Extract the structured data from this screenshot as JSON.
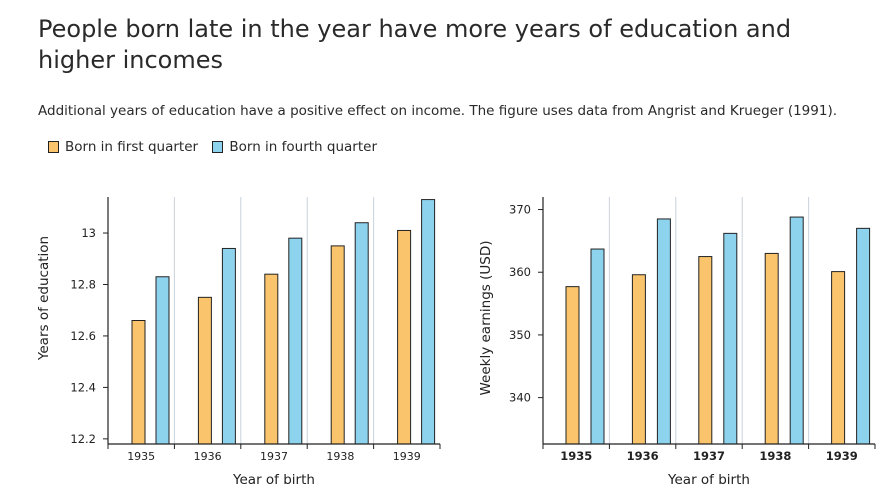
{
  "title": "People born late in the year have more years of education and higher incomes",
  "subtitle": "Additional years of education have a positive effect on income. The figure uses data from Angrist and Krueger (1991).",
  "colors": {
    "first_quarter": "#F9C46B",
    "fourth_quarter": "#8DD3EE",
    "axis": "#222222",
    "divider": "#C9D3DA"
  },
  "legend": [
    {
      "label": "Born in first quarter",
      "color": "#F9C46B"
    },
    {
      "label": "Born in fourth quarter",
      "color": "#8DD3EE"
    }
  ],
  "chart_data": [
    {
      "type": "bar",
      "categories": [
        "1935",
        "1936",
        "1937",
        "1938",
        "1939"
      ],
      "series": [
        {
          "name": "Born in first quarter",
          "values": [
            12.66,
            12.75,
            12.84,
            12.95,
            13.01
          ]
        },
        {
          "name": "Born in fourth quarter",
          "values": [
            12.83,
            12.94,
            12.98,
            13.04,
            13.13
          ]
        }
      ],
      "xlabel": "Year of birth",
      "ylabel": "Years of education",
      "ylim": [
        12.18,
        13.14
      ],
      "yticks": [
        12.2,
        12.4,
        12.6,
        12.8,
        13
      ],
      "ytick_labels": [
        "12.2",
        "12.4",
        "12.6",
        "12.8",
        "13"
      ]
    },
    {
      "type": "bar",
      "categories": [
        "1935",
        "1936",
        "1937",
        "1938",
        "1939"
      ],
      "series": [
        {
          "name": "Born in first quarter",
          "values": [
            357.7,
            359.6,
            362.5,
            363.0,
            360.1
          ]
        },
        {
          "name": "Born in fourth quarter",
          "values": [
            363.7,
            368.5,
            366.2,
            368.8,
            367.0
          ]
        }
      ],
      "xlabel": "Year of birth",
      "ylabel": "Weekly earnings (USD)",
      "ylim": [
        332.6,
        372
      ],
      "yticks": [
        340,
        350,
        360,
        370
      ],
      "ytick_labels": [
        "340",
        "350",
        "360",
        "370"
      ]
    }
  ]
}
